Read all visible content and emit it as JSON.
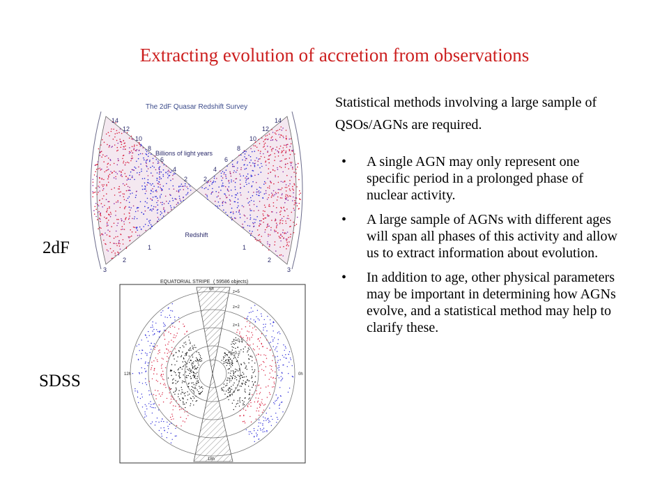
{
  "slide": {
    "title": "Extracting evolution of accretion from observations",
    "intro": "Statistical methods involving a large sample of QSOs/AGNs are required.",
    "bullets": [
      "A single AGN may only represent one specific period in a prolonged phase of nuclear activity.",
      "A large sample of AGNs with different ages will span all phases of this activity and allow us to extract information about evolution.",
      "In addition to age, other physical parameters may be important in determining how AGNs evolve, and a statistical method may help to clarify these."
    ],
    "label_2df": "2dF",
    "label_sdss": "SDSS"
  },
  "fig_2df": {
    "title": "The 2dF Quasar Redshift Survey",
    "inner_label": "Billions of light years",
    "axis_label": "Redshift",
    "distance_ticks": [
      "14",
      "12",
      "10",
      "8",
      "6",
      "4",
      "2"
    ],
    "redshift_ticks": [
      "1",
      "2",
      "3"
    ]
  },
  "fig_sdss": {
    "header": "EQUATORIAL STRIPE",
    "count": "( 59586 objects)",
    "z_labels": [
      "z=5",
      "z=2",
      "z=1",
      "z=0.5",
      "z=0.2",
      "z=0.1"
    ],
    "hour_labels": [
      "12h",
      "0h",
      "18h",
      "6h"
    ]
  },
  "colors": {
    "title": "#cc1f1f",
    "blue": "#2a2ad8",
    "red": "#d81c3c",
    "black": "#111111"
  }
}
